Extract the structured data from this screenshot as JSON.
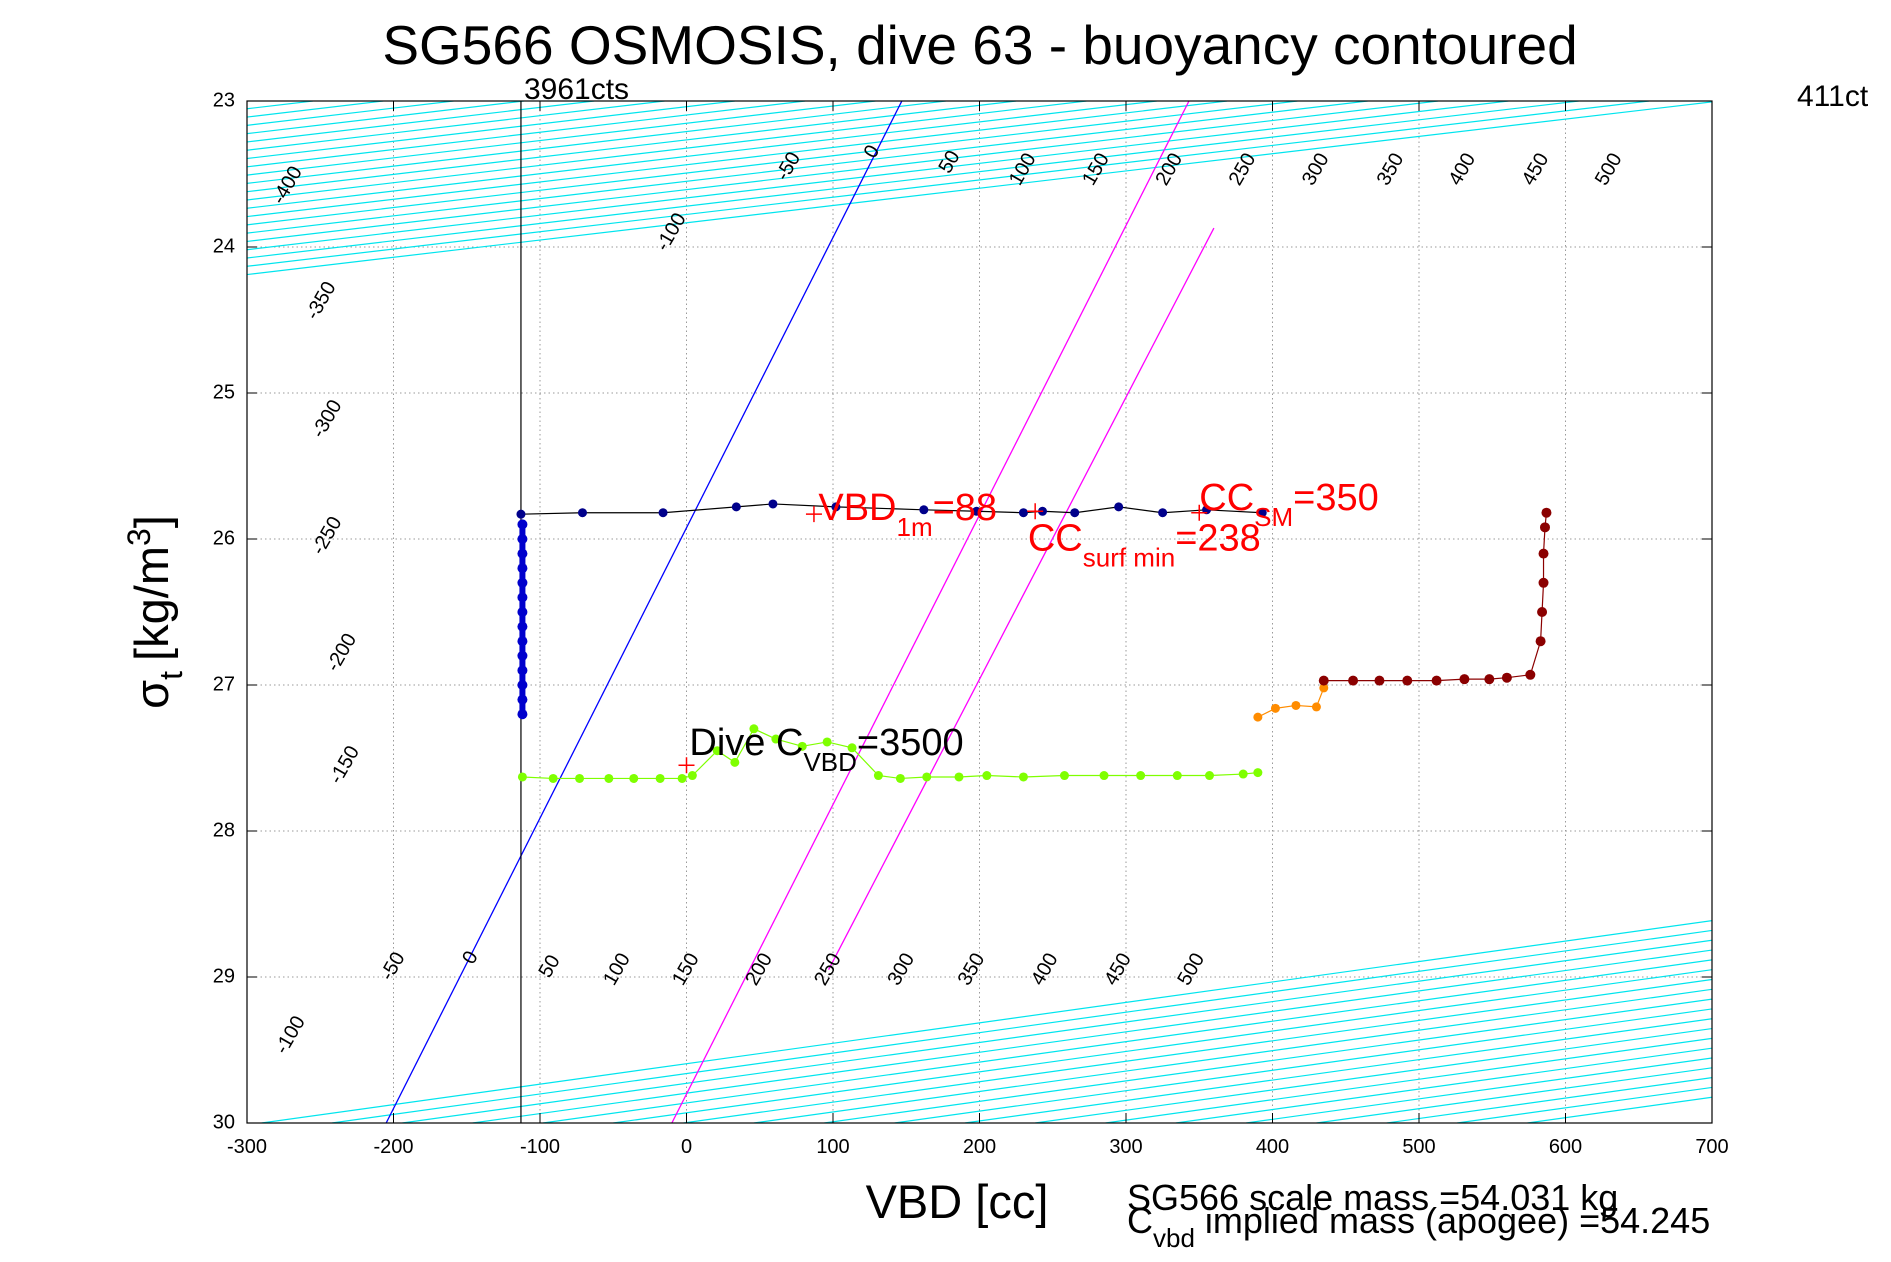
{
  "chart_data": {
    "type": "scatter",
    "title": "SG566 OSMOSIS, dive 63 - buoyancy contoured",
    "xlabel": "VBD [cc]",
    "ylabel": {
      "main": "σ",
      "sub": "t",
      "unit": "[kg/m",
      "sup": "3",
      "close": "]"
    },
    "xlim": [
      -300,
      700
    ],
    "ylim": [
      23,
      30
    ],
    "y_reversed": true,
    "grid": true,
    "xticks": [
      -300,
      -200,
      -100,
      0,
      100,
      200,
      300,
      400,
      500,
      600,
      700
    ],
    "yticks": [
      23,
      24,
      25,
      26,
      27,
      28,
      29,
      30
    ],
    "vline": {
      "x": -113,
      "label": "3961cts"
    },
    "right_corner_text": "411ct",
    "upper_contours": {
      "slope": 0.001183,
      "x_at_23": {
        "-400": -303,
        "-350": -255,
        "-300": -207,
        "-250": -159,
        "-200": -111,
        "-150": -63,
        "-100": -15,
        "-50": 33,
        "0": 81,
        "50": 129,
        "100": 177,
        "150": 225,
        "200": 273,
        "250": 321,
        "300": 369,
        "350": 417,
        "400": 465,
        "450": 513,
        "500": 561,
        "550": 609,
        "600": 657,
        "650": 705
      },
      "labels": [
        {
          "text": "-400",
          "x": -272,
          "y": 23.58
        },
        {
          "text": "-350",
          "x": -249,
          "y": 24.37
        },
        {
          "text": "-300",
          "x": -245,
          "y": 25.18
        },
        {
          "text": "-250",
          "x": -245,
          "y": 25.98
        },
        {
          "text": "-200",
          "x": -235,
          "y": 26.78
        },
        {
          "text": "-150",
          "x": -233,
          "y": 27.55
        },
        {
          "text": "-100",
          "x": -10,
          "y": 23.9
        },
        {
          "text": "-50",
          "x": 70,
          "y": 23.45
        },
        {
          "text": "0",
          "x": 127,
          "y": 23.35
        },
        {
          "text": "50",
          "x": 180,
          "y": 23.42
        },
        {
          "text": "100",
          "x": 230,
          "y": 23.47
        },
        {
          "text": "150",
          "x": 280,
          "y": 23.47
        },
        {
          "text": "200",
          "x": 330,
          "y": 23.47
        },
        {
          "text": "250",
          "x": 380,
          "y": 23.47
        },
        {
          "text": "300",
          "x": 430,
          "y": 23.47
        },
        {
          "text": "350",
          "x": 481,
          "y": 23.47
        },
        {
          "text": "400",
          "x": 530,
          "y": 23.47
        },
        {
          "text": "450",
          "x": 580,
          "y": 23.47
        },
        {
          "text": "500",
          "x": 630,
          "y": 23.47
        }
      ]
    },
    "lower_contours": {
      "slope": 0.0014,
      "x_at_30": {
        "-150": -290,
        "-100": -242,
        "-50": -194,
        "0": -146,
        "50": -98,
        "100": -50,
        "150": -2,
        "200": 46,
        "250": 94,
        "300": 142,
        "350": 190,
        "400": 238,
        "450": 286,
        "500": 334,
        "550": 382,
        "600": 430,
        "650": 478,
        "700": 526,
        "750": 574
      },
      "labels": [
        {
          "text": "-100",
          "x": -270,
          "y": 29.4
        },
        {
          "text": "-50",
          "x": -200,
          "y": 28.93
        },
        {
          "text": "0",
          "x": -147,
          "y": 28.87
        },
        {
          "text": "50",
          "x": -93,
          "y": 28.93
        },
        {
          "text": "100",
          "x": -47,
          "y": 28.95
        },
        {
          "text": "150",
          "x": 0,
          "y": 28.95
        },
        {
          "text": "200",
          "x": 50,
          "y": 28.95
        },
        {
          "text": "250",
          "x": 97,
          "y": 28.95
        },
        {
          "text": "300",
          "x": 147,
          "y": 28.95
        },
        {
          "text": "350",
          "x": 195,
          "y": 28.95
        },
        {
          "text": "400",
          "x": 245,
          "y": 28.95
        },
        {
          "text": "450",
          "x": 295,
          "y": 28.95
        },
        {
          "text": "500",
          "x": 345,
          "y": 28.95
        }
      ]
    },
    "cyan_color": "#00e5ee",
    "special_lines": [
      {
        "name": "blue",
        "color": "#0000ff",
        "x1": -205,
        "y1": 30,
        "x2": 147,
        "y2": 23
      },
      {
        "name": "magenta-1",
        "color": "#ff00ff",
        "x1": -10,
        "y1": 30,
        "x2": 343,
        "y2": 23
      },
      {
        "name": "magenta-2",
        "color": "#ff00ff",
        "x1": 97,
        "y1": 28.95,
        "x2": 360,
        "y2": 23.87
      }
    ],
    "series": [
      {
        "name": "surface-descent",
        "color": "#00008b",
        "points": [
          [
            -113,
            25.83
          ],
          [
            -71,
            25.82
          ],
          [
            -16,
            25.82
          ],
          [
            34,
            25.78
          ],
          [
            59,
            25.76
          ],
          [
            102,
            25.78
          ],
          [
            162,
            25.8
          ],
          [
            198,
            25.81
          ],
          [
            230,
            25.82
          ],
          [
            243,
            25.81
          ],
          [
            265,
            25.82
          ],
          [
            295,
            25.78
          ],
          [
            325,
            25.82
          ],
          [
            355,
            25.8
          ],
          [
            393,
            25.82
          ]
        ]
      },
      {
        "name": "descent-column",
        "color": "#0000cd",
        "points": [
          [
            -112,
            25.9
          ],
          [
            -112,
            26.0
          ],
          [
            -112,
            26.1
          ],
          [
            -112,
            26.2
          ],
          [
            -112,
            26.3
          ],
          [
            -112,
            26.4
          ],
          [
            -112,
            26.5
          ],
          [
            -112,
            26.6
          ],
          [
            -112,
            26.7
          ],
          [
            -112,
            26.8
          ],
          [
            -112,
            26.9
          ],
          [
            -112,
            27.0
          ],
          [
            -112,
            27.1
          ],
          [
            -112,
            27.2
          ]
        ]
      },
      {
        "name": "bottom-green",
        "color": "#7fff00",
        "points": [
          [
            -112,
            27.63
          ],
          [
            -91,
            27.64
          ],
          [
            -73,
            27.64
          ],
          [
            -53,
            27.64
          ],
          [
            -36,
            27.64
          ],
          [
            -18,
            27.64
          ],
          [
            -3,
            27.64
          ],
          [
            4,
            27.62
          ],
          [
            21,
            27.45
          ],
          [
            33,
            27.53
          ],
          [
            46,
            27.3
          ],
          [
            61,
            27.37
          ],
          [
            79,
            27.42
          ],
          [
            96,
            27.39
          ],
          [
            113,
            27.43
          ],
          [
            131,
            27.62
          ],
          [
            146,
            27.64
          ],
          [
            164,
            27.63
          ],
          [
            186,
            27.63
          ],
          [
            205,
            27.62
          ],
          [
            230,
            27.63
          ],
          [
            258,
            27.62
          ],
          [
            285,
            27.62
          ],
          [
            310,
            27.62
          ],
          [
            335,
            27.62
          ],
          [
            357,
            27.62
          ],
          [
            380,
            27.61
          ],
          [
            390,
            27.6
          ]
        ]
      },
      {
        "name": "ascent-orange",
        "color": "#ff8c00",
        "points": [
          [
            390,
            27.22
          ],
          [
            402,
            27.16
          ],
          [
            416,
            27.14
          ],
          [
            430,
            27.15
          ],
          [
            435,
            27.02
          ]
        ]
      },
      {
        "name": "ascent-darkred",
        "color": "#8b0000",
        "points": [
          [
            435,
            26.97
          ],
          [
            455,
            26.97
          ],
          [
            473,
            26.97
          ],
          [
            492,
            26.97
          ],
          [
            512,
            26.97
          ],
          [
            531,
            26.96
          ],
          [
            548,
            26.96
          ],
          [
            560,
            26.95
          ],
          [
            576,
            26.93
          ],
          [
            583,
            26.7
          ],
          [
            584,
            26.5
          ],
          [
            585,
            26.3
          ],
          [
            585,
            26.1
          ],
          [
            586,
            25.92
          ],
          [
            587,
            25.82
          ]
        ]
      }
    ],
    "markers": [
      {
        "x": 87,
        "y": 25.83,
        "color": "#ff0000"
      },
      {
        "x": 0,
        "y": 27.55,
        "color": "#ff0000"
      },
      {
        "x": 238,
        "y": 25.81,
        "color": "#ff0000"
      },
      {
        "x": 350,
        "y": 25.82,
        "color": "#ff0000"
      }
    ],
    "annotations": [
      {
        "name": "vbd-1m",
        "x": 90,
        "y": 25.87,
        "color": "#ff0000",
        "main": "VBD",
        "sub": "1m",
        "rest": "=88"
      },
      {
        "name": "cc-surf-min",
        "x": 233,
        "y": 26.08,
        "color": "#ff0000",
        "main": "CC",
        "sub": "surf min",
        "rest": "=238"
      },
      {
        "name": "cc-sm",
        "x": 350,
        "y": 25.8,
        "color": "#ff0000",
        "main": "CC",
        "sub": "SM",
        "rest": "=350"
      },
      {
        "name": "dive-cvbd",
        "x": 2,
        "y": 27.48,
        "color": "#000000",
        "main": "Dive C",
        "sub": "VBD",
        "rest": "=3500"
      }
    ],
    "footer": {
      "mass_text": "SG566 scale mass =54.031 kg",
      "implied_main": "C",
      "implied_sub": "vbd",
      "implied_rest": " implied mass (apogee) =54.245"
    }
  }
}
